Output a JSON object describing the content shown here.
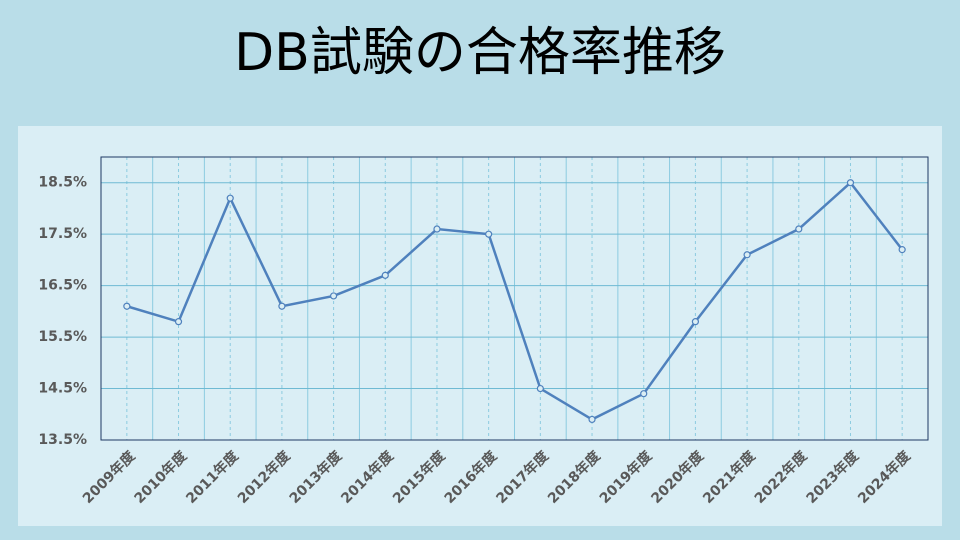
{
  "chart_data": {
    "type": "line",
    "title": "DB試験の合格率推移",
    "categories": [
      "2009年度",
      "2010年度",
      "2011年度",
      "2012年度",
      "2013年度",
      "2014年度",
      "2015年度",
      "2016年度",
      "2017年度",
      "2018年度",
      "2019年度",
      "2020年度",
      "2021年度",
      "2022年度",
      "2023年度",
      "2024年度"
    ],
    "values": [
      16.1,
      15.8,
      18.2,
      16.1,
      16.3,
      16.7,
      17.6,
      17.5,
      14.5,
      13.9,
      14.4,
      15.8,
      17.1,
      17.6,
      18.5,
      17.2
    ],
    "color": "#4f81bd",
    "ylim": [
      13.5,
      19.0
    ],
    "yticks": [
      {
        "value": 13.5,
        "label": "13.5%"
      },
      {
        "value": 14.5,
        "label": "14.5%"
      },
      {
        "value": 15.5,
        "label": "15.5%"
      },
      {
        "value": 16.5,
        "label": "16.5%"
      },
      {
        "value": 17.5,
        "label": "17.5%"
      },
      {
        "value": 18.5,
        "label": "18.5%"
      }
    ],
    "grid": true
  }
}
